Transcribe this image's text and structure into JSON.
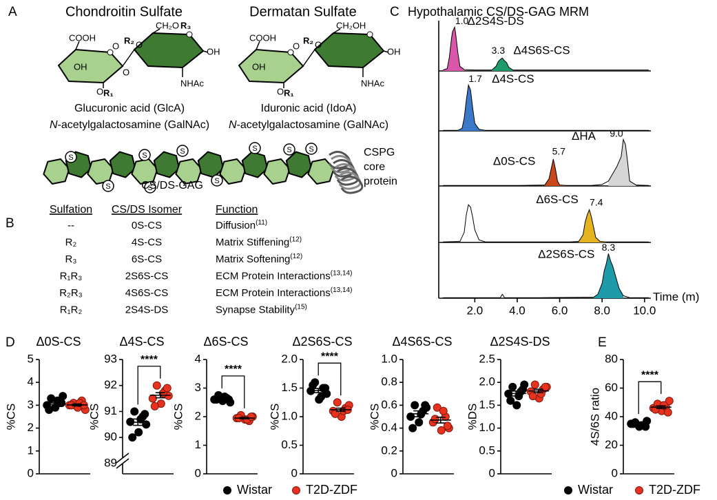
{
  "panel_labels": [
    "A",
    "B",
    "C",
    "D",
    "E"
  ],
  "structures": [
    {
      "title": "Chondroitin Sulfate",
      "labels": [
        "COOH",
        "OH",
        "O",
        "O",
        "O",
        "R₁",
        "R₂",
        "O",
        "CH₂O",
        "R₃",
        "OH",
        "NHAc"
      ],
      "sugar": "Glucuronic acid (GlcA)",
      "amine_italic": "N",
      "amine": "-acetylgalactosamine (GalNAc)"
    },
    {
      "title": "Dermatan Sulfate",
      "labels": [
        "COOH",
        "OH",
        "O",
        "O",
        "R₁",
        "R₂",
        "O",
        "CH₂OH",
        "OH",
        "NHAc"
      ],
      "sugar": "Iduronic acid (IdoA)",
      "amine_italic": "N",
      "amine": "-acetylgalactosamine (GalNAc)"
    }
  ],
  "chain": {
    "label": "CS/DS-GAG",
    "sulfate": "S",
    "protein": [
      "CSPG",
      "core",
      "protein"
    ]
  },
  "table": {
    "headers": [
      "Sulfation",
      "CS/DS Isomer",
      "Function"
    ],
    "rows": [
      {
        "sulfation": "--",
        "isomer": "0S-CS",
        "function": "Diffusion",
        "ref": "(11)",
        "color": "#b5561f"
      },
      {
        "sulfation": "R₂",
        "isomer": "4S-CS",
        "function": "Matrix Stiffening",
        "ref": "(12)",
        "color": "#2e6aa6"
      },
      {
        "sulfation": "R₃",
        "isomer": "6S-CS",
        "function": "Matrix Softening",
        "ref": "(12)",
        "color": "#b8921b"
      },
      {
        "sulfation": "R₁R₃",
        "isomer": "2S6S-CS",
        "function": "ECM Protein Interactions",
        "ref": "(13,14)",
        "color": "#2b8c97"
      },
      {
        "sulfation": "R₂R₃",
        "isomer": "4S6S-CS",
        "function": "ECM Protein Interactions",
        "ref": "(13,14)",
        "color": "#3c6e2b"
      },
      {
        "sulfation": "R₁R₂",
        "isomer": "2S4S-DS",
        "function": "Synapse Stability",
        "ref": "(15)",
        "color": "#9c5aa8"
      }
    ]
  },
  "chromatogram": {
    "type": "line",
    "title": "Hypothalamic CS/DS-GAG MRM",
    "xlabel": "Time (m)",
    "xlim": [
      0.3,
      10.3
    ],
    "xticks": [
      {
        "value": 2,
        "label": "2.0"
      },
      {
        "value": 4,
        "label": "4.0"
      },
      {
        "value": 6,
        "label": "6.0"
      },
      {
        "value": 8,
        "label": "8.0"
      },
      {
        "value": 10,
        "label": "10.0"
      }
    ],
    "ylim": [
      0,
      100
    ],
    "traces": [
      {
        "x": [
          0.5,
          0.7,
          0.8,
          0.9,
          0.95,
          1.0,
          1.05,
          1.1,
          1.2,
          1.3,
          1.5,
          2.0,
          2.8,
          3.0,
          3.1,
          3.2,
          3.3,
          3.4,
          3.5,
          3.6,
          3.8,
          4.5,
          6,
          8,
          10.2
        ],
        "values": [
          2,
          5,
          30,
          70,
          85,
          90,
          95,
          80,
          40,
          10,
          3,
          2,
          2,
          10,
          20,
          25,
          28,
          22,
          18,
          8,
          2,
          2,
          2,
          2,
          2
        ],
        "peaks": [
          {
            "name": "Δ2S4S-DS",
            "rt": {
              "value": 1.0,
              "label": "1.0"
            },
            "color": "#d957a8"
          },
          {
            "name": "Δ4S6S-CS",
            "rt": {
              "value": 3.3,
              "label": "3.3"
            },
            "color": "#1f9a6a"
          }
        ]
      },
      {
        "x": [
          0.5,
          1.2,
          1.4,
          1.5,
          1.6,
          1.7,
          1.8,
          1.9,
          2.0,
          2.2,
          2.5,
          4,
          6,
          8,
          10.2
        ],
        "values": [
          1,
          1,
          5,
          25,
          60,
          90,
          80,
          45,
          15,
          3,
          1,
          1,
          1,
          1,
          1
        ],
        "peaks": [
          {
            "name": "Δ4S-CS",
            "rt": {
              "value": 1.7,
              "label": "1.7"
            },
            "color": "#3b78c8"
          }
        ]
      },
      {
        "x": [
          0.5,
          2,
          4,
          5.3,
          5.5,
          5.6,
          5.7,
          5.8,
          5.9,
          6.0,
          6.3,
          7.5,
          8.0,
          8.3,
          8.5,
          8.7,
          8.9,
          9.0,
          9.1,
          9.2,
          9.3,
          9.6,
          10.2
        ],
        "values": [
          1,
          1,
          1,
          2,
          15,
          35,
          55,
          35,
          10,
          2,
          1,
          1,
          3,
          10,
          25,
          40,
          60,
          95,
          85,
          50,
          10,
          2,
          1
        ],
        "peaks": [
          {
            "name": "Δ0S-CS",
            "rt": {
              "value": 5.7,
              "label": "5.7"
            },
            "color": "#c8481c"
          },
          {
            "name": "ΔHA",
            "rt": {
              "value": 9.0,
              "label": "9.0"
            },
            "color": "#d6d6d6"
          }
        ]
      },
      {
        "x": [
          0.5,
          1.3,
          1.5,
          1.6,
          1.7,
          1.8,
          1.9,
          2.0,
          2.2,
          2.5,
          4,
          6.5,
          6.9,
          7.1,
          7.2,
          7.3,
          7.4,
          7.5,
          7.6,
          7.7,
          7.9,
          8.2,
          10.2
        ],
        "values": [
          1,
          2,
          20,
          55,
          75,
          70,
          50,
          25,
          5,
          1,
          1,
          1,
          2,
          15,
          40,
          55,
          65,
          50,
          30,
          10,
          2,
          1,
          1
        ],
        "peaks": [
          {
            "name": "Δ6S-CS",
            "rt": {
              "value": 7.4,
              "label": "7.4"
            },
            "color": "#e6b420"
          }
        ]
      },
      {
        "x": [
          0.5,
          2,
          3.2,
          3.3,
          3.4,
          5,
          7.6,
          7.8,
          8.0,
          8.1,
          8.2,
          8.3,
          8.4,
          8.5,
          8.6,
          8.7,
          8.8,
          9.0,
          9.3,
          10.2
        ],
        "values": [
          1,
          1,
          1,
          8,
          1,
          1,
          2,
          8,
          30,
          55,
          70,
          90,
          75,
          65,
          50,
          35,
          20,
          5,
          1,
          1
        ],
        "peaks": [
          {
            "name": "Δ2S6S-CS",
            "rt": {
              "value": 8.3,
              "label": "8.3"
            },
            "color": "#1f9aa8"
          }
        ]
      }
    ]
  },
  "chart_data": [
    {
      "type": "dotplot",
      "title": "Δ0S-CS",
      "title_color": "#b5561f",
      "ylabel": "%CS",
      "ylim": [
        0,
        5
      ],
      "yticks": [
        0,
        1,
        2,
        3,
        4,
        5
      ],
      "series": [
        {
          "name": "Wistar",
          "color": "#000000",
          "values": [
            3.0,
            3.3,
            2.9,
            3.1,
            3.4,
            2.8,
            3.2,
            3.1
          ]
        },
        {
          "name": "T2D-ZDF",
          "color": "#e8321e",
          "values": [
            3.0,
            3.1,
            2.9,
            3.2,
            2.8,
            3.0,
            3.1,
            3.0
          ]
        }
      ]
    },
    {
      "type": "dotplot",
      "title": "Δ4S-CS",
      "title_color": "#2e6aa6",
      "ylabel": "%CS",
      "ylim": [
        88.6,
        93
      ],
      "yticks": [
        89,
        90,
        91,
        92,
        93
      ],
      "axis_break": true,
      "significance": "****",
      "series": [
        {
          "name": "Wistar",
          "color": "#000000",
          "values": [
            90.6,
            91.0,
            90.2,
            90.8,
            90.5,
            90.0,
            90.7,
            90.9
          ]
        },
        {
          "name": "T2D-ZDF",
          "color": "#e8321e",
          "values": [
            91.5,
            92.0,
            91.3,
            91.8,
            91.6,
            91.2,
            91.7,
            91.9
          ]
        }
      ]
    },
    {
      "type": "dotplot",
      "title": "Δ6S-CS",
      "title_color": "#b8921b",
      "ylabel": "%CS",
      "ylim": [
        0,
        4
      ],
      "yticks": [
        0,
        1,
        2,
        3,
        4
      ],
      "significance": "****",
      "series": [
        {
          "name": "Wistar",
          "color": "#000000",
          "values": [
            2.6,
            2.75,
            2.55,
            2.65,
            2.5,
            2.6,
            2.7,
            2.6
          ]
        },
        {
          "name": "T2D-ZDF",
          "color": "#e8321e",
          "values": [
            1.95,
            2.05,
            1.9,
            1.85,
            2.0,
            1.95,
            1.9,
            2.0
          ]
        }
      ]
    },
    {
      "type": "dotplot",
      "title": "Δ2S6S-CS",
      "title_color": "#2b8c97",
      "ylabel": "%CS",
      "ylim": [
        0,
        2
      ],
      "yticks": [
        0,
        0.5,
        {
          "value": 1,
          "label": "1.0"
        },
        1.5,
        {
          "value": 2,
          "label": "2.0"
        }
      ],
      "significance": "****",
      "series": [
        {
          "name": "Wistar",
          "color": "#000000",
          "values": [
            1.45,
            1.6,
            1.3,
            1.5,
            1.4,
            1.55,
            1.35,
            1.5
          ]
        },
        {
          "name": "T2D-ZDF",
          "color": "#e8321e",
          "values": [
            1.1,
            1.25,
            1.0,
            1.15,
            1.2,
            1.05,
            1.1,
            1.12
          ]
        }
      ]
    },
    {
      "type": "dotplot",
      "title": "Δ4S6S-CS",
      "title_color": "#3c6e2b",
      "ylabel": "%CS",
      "ylim": [
        0,
        1
      ],
      "yticks": [
        0,
        0.2,
        0.4,
        0.6,
        0.8,
        {
          "value": 1,
          "label": "1.0"
        }
      ],
      "series": [
        {
          "name": "Wistar",
          "color": "#000000",
          "values": [
            0.5,
            0.6,
            0.45,
            0.55,
            0.58,
            0.4,
            0.52,
            0.6
          ]
        },
        {
          "name": "T2D-ZDF",
          "color": "#e8321e",
          "values": [
            0.45,
            0.58,
            0.38,
            0.5,
            0.4,
            0.48,
            0.55,
            0.42
          ]
        }
      ]
    },
    {
      "type": "dotplot",
      "title": "Δ2S4S-DS",
      "title_color": "#9c5aa8",
      "ylabel": "%DS",
      "ylim": [
        0,
        2.5
      ],
      "yticks": [
        0,
        0.5,
        {
          "value": 1,
          "label": "1.0"
        },
        1.5,
        {
          "value": 2,
          "label": "2.0"
        },
        2.5
      ],
      "series": [
        {
          "name": "Wistar",
          "color": "#000000",
          "values": [
            1.75,
            1.9,
            1.5,
            1.8,
            1.95,
            1.6,
            1.7,
            1.85
          ]
        },
        {
          "name": "T2D-ZDF",
          "color": "#e8321e",
          "values": [
            1.8,
            1.95,
            1.65,
            1.85,
            1.9,
            1.7,
            1.75,
            1.9
          ]
        }
      ]
    },
    {
      "type": "dotplot",
      "ylabel": "4S/6S ratio",
      "ylim": [
        0,
        80
      ],
      "yticks": [
        0,
        20,
        40,
        60,
        80
      ],
      "significance": "****",
      "series": [
        {
          "name": "Wistar",
          "color": "#000000",
          "values": [
            35,
            36,
            33,
            34,
            37,
            35,
            34,
            33
          ]
        },
        {
          "name": "T2D-ZDF",
          "color": "#e8321e",
          "values": [
            46,
            49,
            44,
            47,
            51,
            45,
            48,
            43
          ]
        }
      ]
    }
  ]
}
